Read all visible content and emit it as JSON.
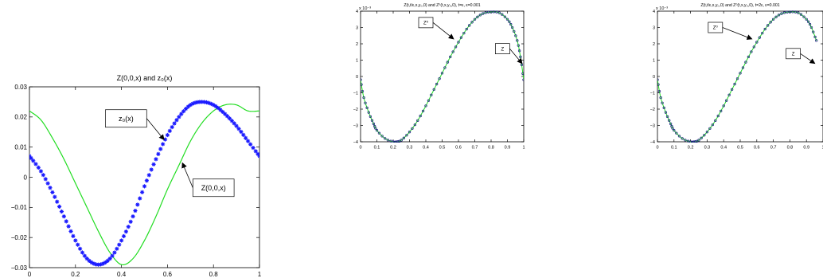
{
  "chart_data": [
    {
      "type": "line",
      "title": "Z(0,0,x) and z₀(x)",
      "xlim": [
        0,
        1
      ],
      "ylim": [
        -0.03,
        0.03
      ],
      "xticks": [
        0,
        0.2,
        0.4,
        0.6,
        0.8,
        1
      ],
      "xtick_labels": [
        "0",
        "0.2",
        "0.4",
        "0.6",
        "0.8",
        "1"
      ],
      "yticks": [
        -0.03,
        -0.02,
        -0.01,
        0,
        0.01,
        0.02,
        0.03
      ],
      "ytick_labels": [
        "−0.03",
        "−0.02",
        "−0.01",
        "0",
        "0.01",
        "0.02",
        "0.03"
      ],
      "series": [
        {
          "name": "z₀(x)",
          "style": "markers",
          "color": "#1a1aff",
          "x": [
            0,
            0.05,
            0.1,
            0.15,
            0.2,
            0.25,
            0.3,
            0.35,
            0.4,
            0.45,
            0.5,
            0.55,
            0.6,
            0.65,
            0.7,
            0.75,
            0.8,
            0.85,
            0.9,
            0.95,
            1
          ],
          "y": [
            0.007,
            0.002,
            -0.005,
            -0.013,
            -0.021,
            -0.027,
            -0.029,
            -0.027,
            -0.021,
            -0.013,
            -0.003,
            0.006,
            0.014,
            0.02,
            0.024,
            0.025,
            0.024,
            0.021,
            0.017,
            0.012,
            0.007
          ]
        },
        {
          "name": "Z(0,0,x)",
          "style": "line",
          "color": "#22dd22",
          "x": [
            0,
            0.05,
            0.1,
            0.15,
            0.2,
            0.25,
            0.3,
            0.35,
            0.4,
            0.45,
            0.5,
            0.55,
            0.6,
            0.65,
            0.7,
            0.75,
            0.8,
            0.85,
            0.9,
            0.95,
            1
          ],
          "y": [
            0.022,
            0.019,
            0.013,
            0.006,
            -0.002,
            -0.01,
            -0.018,
            -0.025,
            -0.029,
            -0.027,
            -0.021,
            -0.013,
            -0.004,
            0.004,
            0.012,
            0.018,
            0.022,
            0.024,
            0.024,
            0.022,
            0.022
          ]
        }
      ],
      "annotations": [
        {
          "label": "z₀(x)",
          "box_x": 0.42,
          "box_y": 0.0195,
          "target_x": 0.585,
          "target_y": 0.0125
        },
        {
          "label": "Z(0,0,x)",
          "box_x": 0.8,
          "box_y": -0.0035,
          "target_x": 0.665,
          "target_y": 0.0047
        }
      ]
    },
    {
      "type": "line",
      "title": "Z(t,t/ε,x,y₀,0) and Z⁰(t,x,y₀,0), t=ε, ε=0.001",
      "y_exponent_label": "x 10⁻³",
      "xlim": [
        0,
        1
      ],
      "ylim": [
        -4,
        4
      ],
      "xticks": [
        0,
        0.1,
        0.2,
        0.3,
        0.4,
        0.5,
        0.6,
        0.7,
        0.8,
        0.9,
        1
      ],
      "xtick_labels": [
        "0",
        "0.1",
        "0.2",
        "0.3",
        "0.4",
        "0.5",
        "0.6",
        "0.7",
        "0.8",
        "0.9",
        "1"
      ],
      "yticks": [
        -4,
        -3,
        -2,
        -1,
        0,
        1,
        2,
        3,
        4
      ],
      "ytick_labels": [
        "−4",
        "−3",
        "−2",
        "−1",
        "0",
        "1",
        "2",
        "3",
        "4"
      ],
      "series": [
        {
          "name": "Z⁰",
          "style": "markers",
          "color": "#1a1a80",
          "x": [
            0,
            0.02,
            0.05,
            0.08,
            0.1,
            0.15,
            0.2,
            0.22,
            0.25,
            0.3,
            0.35,
            0.4,
            0.45,
            0.5,
            0.55,
            0.6,
            0.65,
            0.7,
            0.75,
            0.8,
            0.85,
            0.9,
            0.93,
            0.96,
            0.98,
            1
          ],
          "y": [
            -0.2,
            -1.3,
            -2.2,
            -2.9,
            -3.3,
            -3.8,
            -4.0,
            -4.0,
            -3.9,
            -3.4,
            -2.7,
            -1.8,
            -0.8,
            0.2,
            1.2,
            2.1,
            2.9,
            3.5,
            3.85,
            3.95,
            3.9,
            3.5,
            3.0,
            2.2,
            1.2,
            -0.2
          ]
        },
        {
          "name": "Z",
          "style": "line",
          "color": "#22dd22",
          "x": [
            0,
            0.02,
            0.05,
            0.08,
            0.1,
            0.15,
            0.2,
            0.22,
            0.25,
            0.3,
            0.35,
            0.4,
            0.45,
            0.5,
            0.55,
            0.6,
            0.65,
            0.7,
            0.75,
            0.8,
            0.85,
            0.9,
            0.93,
            0.96,
            0.98,
            1
          ],
          "y": [
            -0.2,
            -1.3,
            -2.2,
            -2.9,
            -3.3,
            -3.8,
            -4.0,
            -4.0,
            -3.9,
            -3.4,
            -2.7,
            -1.8,
            -0.8,
            0.2,
            1.2,
            2.1,
            2.9,
            3.5,
            3.85,
            3.95,
            3.9,
            3.5,
            3.0,
            2.2,
            1.2,
            -0.2
          ]
        }
      ],
      "annotations": [
        {
          "label": "Z⁰",
          "box_x": 0.4,
          "box_y": 3.3,
          "target_x": 0.57,
          "target_y": 2.3
        },
        {
          "label": "Z",
          "box_x": 0.87,
          "box_y": 1.7,
          "target_x": 0.99,
          "target_y": 0.8
        }
      ]
    },
    {
      "type": "line",
      "title": "Z(t,t/ε,x,y₀,0) and Z⁰(t,x,y₀,0), t=2ε, ε=0.001",
      "y_exponent_label": "x 10⁻³",
      "xlim": [
        0,
        1
      ],
      "ylim": [
        -4,
        4
      ],
      "xticks": [
        0,
        0.1,
        0.2,
        0.3,
        0.4,
        0.5,
        0.6,
        0.7,
        0.8,
        0.9,
        1
      ],
      "xtick_labels": [
        "0",
        "0.1",
        "0.2",
        "0.3",
        "0.4",
        "0.5",
        "0.6",
        "0.7",
        "0.8",
        "0.9",
        "1"
      ],
      "yticks": [
        -4,
        -3,
        -2,
        -1,
        0,
        1,
        2,
        3,
        4
      ],
      "ytick_labels": [
        "−4",
        "−3",
        "−2",
        "−1",
        "0",
        "1",
        "2",
        "3",
        "4"
      ],
      "series": [
        {
          "name": "Z⁰",
          "style": "markers",
          "color": "#1a1a80",
          "x": [
            0,
            0.02,
            0.05,
            0.08,
            0.1,
            0.15,
            0.2,
            0.22,
            0.25,
            0.3,
            0.35,
            0.4,
            0.45,
            0.5,
            0.55,
            0.6,
            0.65,
            0.7,
            0.75,
            0.8,
            0.85,
            0.9,
            0.93,
            0.96
          ],
          "y": [
            -0.2,
            -1.3,
            -2.2,
            -2.9,
            -3.3,
            -3.8,
            -4.0,
            -4.0,
            -3.9,
            -3.4,
            -2.7,
            -1.8,
            -0.8,
            0.2,
            1.2,
            2.1,
            2.9,
            3.5,
            3.85,
            3.95,
            3.9,
            3.5,
            3.0,
            2.2
          ]
        },
        {
          "name": "Z",
          "style": "line",
          "color": "#22dd22",
          "x": [
            0,
            0.02,
            0.05,
            0.08,
            0.1,
            0.15,
            0.2,
            0.22,
            0.25,
            0.3,
            0.35,
            0.4,
            0.45,
            0.5,
            0.55,
            0.6,
            0.65,
            0.7,
            0.75,
            0.8,
            0.85,
            0.9,
            0.93,
            0.96
          ],
          "y": [
            -0.2,
            -1.3,
            -2.2,
            -2.9,
            -3.3,
            -3.8,
            -4.0,
            -4.0,
            -3.9,
            -3.4,
            -2.7,
            -1.8,
            -0.8,
            0.2,
            1.2,
            2.1,
            2.9,
            3.5,
            3.85,
            3.95,
            3.9,
            3.5,
            3.0,
            2.2
          ]
        }
      ],
      "annotations": [
        {
          "label": "Z⁰",
          "box_x": 0.35,
          "box_y": 3.0,
          "target_x": 0.57,
          "target_y": 2.3
        },
        {
          "label": "Z",
          "box_x": 0.82,
          "box_y": 1.4,
          "target_x": 0.95,
          "target_y": 0.8
        }
      ]
    }
  ]
}
